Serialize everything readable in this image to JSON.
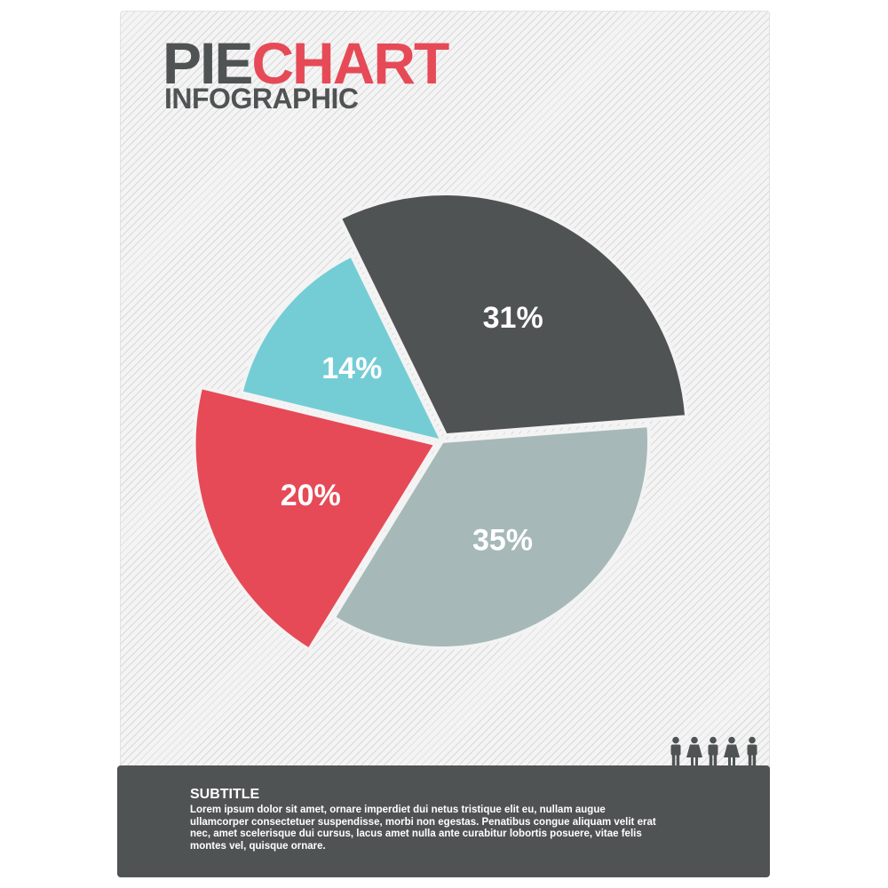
{
  "header": {
    "title_part1": "PIE",
    "title_part2": "CHART",
    "subtitle": "INFOGRAPHIC"
  },
  "chart_data": {
    "type": "pie",
    "values": [
      31,
      35,
      20,
      14
    ],
    "labels": [
      "31%",
      "35%",
      "20%",
      "14%"
    ],
    "colors": [
      "#505354",
      "#a6b9b8",
      "#e64a57",
      "#74cdd5"
    ],
    "exploded": [
      true,
      false,
      true,
      false
    ]
  },
  "footer": {
    "title": "SUBTITLE",
    "text": "Lorem ipsum dolor sit amet, ornare imperdiet dui netus tristique elit eu, nullam augue ullamcorper consectetuer suspendisse, morbi non egestas. Penatibus congue aliquam velit erat nec, amet scelerisque dui cursus, lacus amet nulla ante curabitur lobortis posuere, vitae felis montes vel, quisque ornare."
  },
  "icons": {
    "people": "people-group-icon"
  }
}
